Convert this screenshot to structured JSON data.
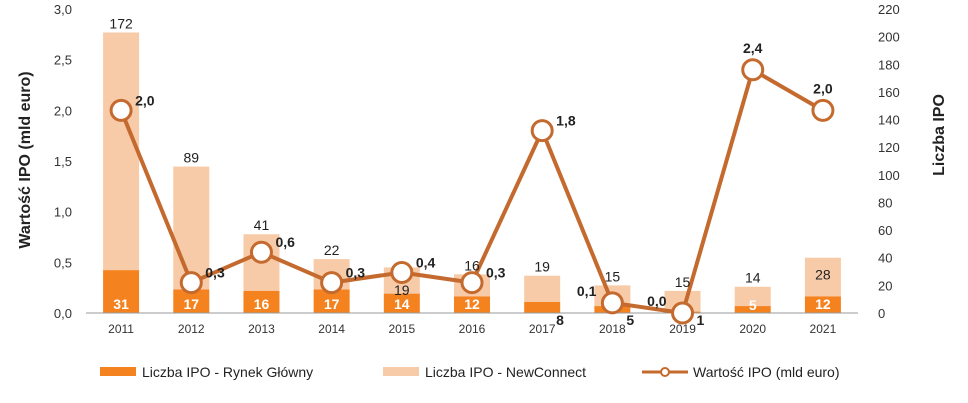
{
  "colors": {
    "main_market": "#F4821F",
    "newconnect": "#F8CBA8",
    "value_line": "#C46A2E",
    "marker_fill": "#ffffff"
  },
  "chart_data": {
    "type": "bar",
    "categories": [
      "2011",
      "2012",
      "2013",
      "2014",
      "2015",
      "2016",
      "2017",
      "2018",
      "2019",
      "2020",
      "2021"
    ],
    "left_axis": {
      "label": "Wartość IPO (mld euro)",
      "range": [
        0,
        3.0
      ],
      "ticks": [
        "0,0",
        "0,5",
        "1,0",
        "1,5",
        "2,0",
        "2,5",
        "3,0"
      ]
    },
    "right_axis": {
      "label": "Liczba IPO",
      "range": [
        0,
        220
      ],
      "ticks": [
        "0",
        "20",
        "40",
        "60",
        "80",
        "100",
        "120",
        "140",
        "160",
        "180",
        "200",
        "220"
      ]
    },
    "series": [
      {
        "name": "Liczba IPO - Rynek Główny",
        "kind": "bar-stack-bottom",
        "axis": "right",
        "values": [
          31,
          17,
          16,
          17,
          14,
          12,
          8,
          5,
          1,
          5,
          12
        ],
        "labels": [
          "31",
          "17",
          "16",
          "17",
          "14",
          "12",
          "8",
          "5",
          "1",
          "5",
          "12"
        ]
      },
      {
        "name": "Liczba IPO - NewConnect",
        "kind": "bar-stack-top",
        "axis": "right",
        "values": [
          172,
          89,
          41,
          22,
          19,
          16,
          19,
          15,
          15,
          14,
          28
        ],
        "labels": [
          "172",
          "89",
          "41",
          "22",
          "19",
          "16",
          "19",
          "15",
          "15",
          "14",
          "28"
        ]
      },
      {
        "name": "Wartość IPO (mld euro)",
        "kind": "line",
        "axis": "left",
        "values": [
          2.0,
          0.3,
          0.6,
          0.3,
          0.4,
          0.3,
          1.8,
          0.1,
          0.0,
          2.4,
          2.0
        ],
        "labels": [
          "2,0",
          "0,3",
          "0,6",
          "0,3",
          "0,4",
          "0,3",
          "1,8",
          "0,1",
          "0,0",
          "2,4",
          "2,0"
        ]
      }
    ],
    "legend_position": "bottom",
    "grid": false
  }
}
